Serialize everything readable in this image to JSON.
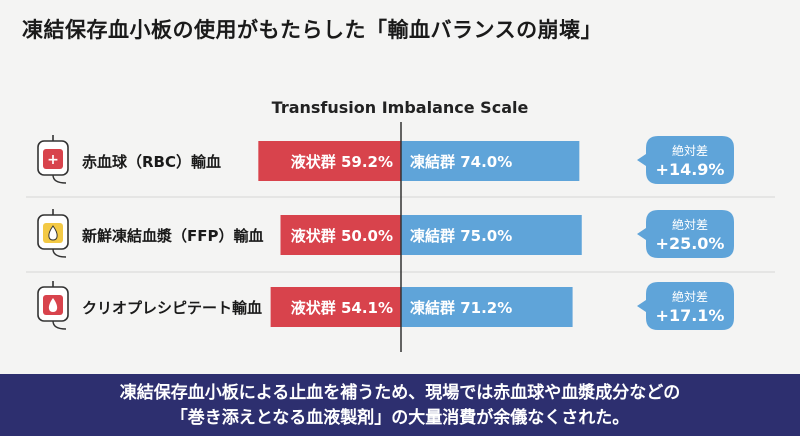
{
  "title": "凍結保存血小板の使用がもたらした「輸血バランスの崩壊」",
  "chart_data": {
    "type": "bar",
    "title": "Transfusion Imbalance Scale",
    "categories": [
      "赤血球（RBC）輸血",
      "新鮮凍結血漿（FFP）輸血",
      "クリオプレシピテート輸血"
    ],
    "icons": [
      "rbc-blood-bag-icon",
      "ffp-plasma-bag-icon",
      "cryo-blood-bag-icon"
    ],
    "series": [
      {
        "name": "液状群",
        "values": [
          59.2,
          50.0,
          54.1
        ],
        "color": "#d8434c"
      },
      {
        "name": "凍結群",
        "values": [
          74.0,
          75.0,
          71.2
        ],
        "color": "#5fa4d9"
      }
    ],
    "value_labels": {
      "left": [
        "液状群 59.2%",
        "液状群 50.0%",
        "液状群 54.1%"
      ],
      "right": [
        "凍結群 74.0%",
        "凍結群 75.0%",
        "凍結群 71.2%"
      ]
    },
    "differences": [
      14.9,
      25.0,
      17.1
    ],
    "difference_label": "絶対差",
    "difference_values": [
      "+14.9%",
      "+25.0%",
      "+17.1%"
    ]
  },
  "footer": {
    "line1": "凍結保存血小板による止血を補うため、現場では赤血球や血漿成分などの",
    "line2": "「巻き添えとなる血液製剤」の大量消費が余儀なくされた。"
  }
}
